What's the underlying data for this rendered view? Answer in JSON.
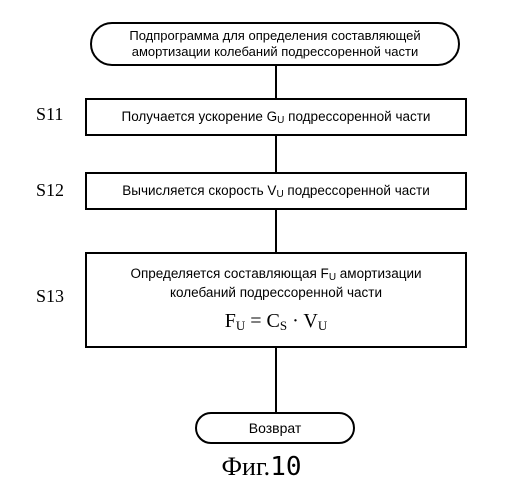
{
  "diagram": {
    "type": "flowchart",
    "background_color": "#ffffff",
    "border_color": "#000000",
    "text_color": "#000000",
    "font_size_body": 13.5,
    "font_size_label": 18,
    "font_size_formula": 20,
    "font_size_caption": 26,
    "start": "Подпрограмма для определения составляющей амортизации колебаний подрессоренной части",
    "steps": [
      {
        "label": "S11",
        "text_pre": "Получается ускорение G",
        "sub": "U",
        "text_post": " подрессоренной части"
      },
      {
        "label": "S12",
        "text_pre": "Вычисляется скорость V",
        "sub": "U",
        "text_post": " подрессоренной части"
      },
      {
        "label": "S13",
        "text_pre": "Определяется составляющая F",
        "sub": "U",
        "text_post": " амортизации колебаний подрессоренной части"
      }
    ],
    "formula": {
      "F": "F",
      "Fsub": "U",
      "eq": " = ",
      "C": "C",
      "Csub": "S",
      "dot": " · ",
      "V": "V",
      "Vsub": "U"
    },
    "end": "Возврат",
    "caption_pre": "Фиг.",
    "caption_num": "10"
  }
}
